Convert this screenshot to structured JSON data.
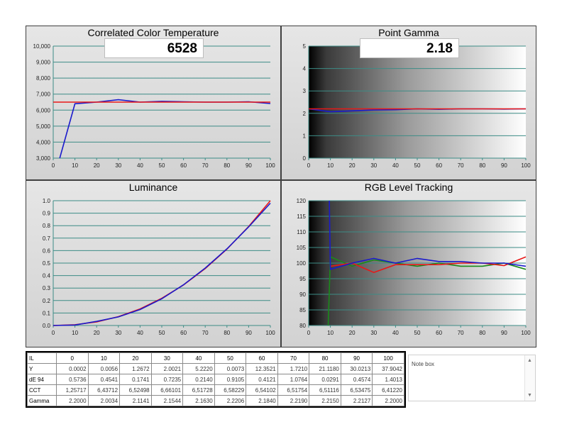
{
  "colors": {
    "blue": "#1a1acc",
    "red": "#e81818",
    "green": "#1a8a1a",
    "grid": "#3c8c86",
    "panel_bg": "#dcdcdc"
  },
  "chart_data": [
    {
      "id": "cct",
      "type": "line",
      "title": "Correlated Color Temperature",
      "readout": "6528",
      "x": [
        0,
        10,
        20,
        30,
        40,
        50,
        60,
        70,
        80,
        90,
        100
      ],
      "xlim": [
        0,
        100
      ],
      "ylim": [
        3000,
        10000
      ],
      "xticks": [
        "0",
        "10",
        "20",
        "30",
        "40",
        "50",
        "60",
        "70",
        "80",
        "90",
        "100"
      ],
      "yticks": [
        "3,000",
        "4,000",
        "5,000",
        "6,000",
        "7,000",
        "8,000",
        "9,000",
        "10,000"
      ],
      "series": [
        {
          "color": "blue",
          "x": [
            3,
            10,
            20,
            30,
            40,
            50,
            60,
            70,
            80,
            90,
            100
          ],
          "y": [
            3000,
            6400,
            6500,
            6650,
            6500,
            6550,
            6520,
            6500,
            6500,
            6520,
            6410
          ]
        },
        {
          "color": "red",
          "x": [
            0,
            100
          ],
          "y": [
            6500,
            6500
          ]
        }
      ],
      "background": "plain"
    },
    {
      "id": "gamma",
      "type": "line",
      "title": "Point Gamma",
      "readout": "2.18",
      "xlim": [
        0,
        100
      ],
      "ylim": [
        0,
        5
      ],
      "xticks": [
        "0",
        "10",
        "20",
        "30",
        "40",
        "50",
        "60",
        "70",
        "80",
        "90",
        "100"
      ],
      "yticks": [
        "0",
        "1",
        "2",
        "3",
        "4",
        "5"
      ],
      "series": [
        {
          "color": "blue",
          "x": [
            0,
            10,
            20,
            30,
            40,
            50,
            60,
            70,
            80,
            90,
            100
          ],
          "y": [
            2.2,
            2.07,
            2.11,
            2.15,
            2.16,
            2.2,
            2.18,
            2.2,
            2.2,
            2.19,
            2.2
          ]
        },
        {
          "color": "red",
          "x": [
            0,
            100
          ],
          "y": [
            2.2,
            2.2
          ]
        }
      ],
      "background": "grayscale"
    },
    {
      "id": "lum",
      "type": "line",
      "title": "Luminance",
      "readout": "",
      "xlim": [
        0,
        100
      ],
      "ylim": [
        0,
        1
      ],
      "xticks": [
        "0",
        "10",
        "20",
        "30",
        "40",
        "50",
        "60",
        "70",
        "80",
        "90",
        "100"
      ],
      "yticks": [
        "0.0",
        "0.1",
        "0.2",
        "0.3",
        "0.4",
        "0.5",
        "0.6",
        "0.7",
        "0.8",
        "0.9",
        "1.0"
      ],
      "series": [
        {
          "color": "red",
          "x": [
            0,
            10,
            20,
            30,
            40,
            50,
            60,
            70,
            80,
            90,
            100
          ],
          "y": [
            0,
            0.006,
            0.029,
            0.071,
            0.133,
            0.218,
            0.325,
            0.456,
            0.612,
            0.793,
            1.0
          ]
        },
        {
          "color": "blue",
          "x": [
            0,
            10,
            20,
            30,
            40,
            50,
            60,
            70,
            80,
            90,
            100
          ],
          "y": [
            0,
            0.004,
            0.033,
            0.069,
            0.128,
            0.214,
            0.326,
            0.46,
            0.614,
            0.79,
            0.98
          ]
        }
      ],
      "background": "plain"
    },
    {
      "id": "rgb",
      "type": "line",
      "title": "RGB Level Tracking",
      "readout": "",
      "xlim": [
        0,
        100
      ],
      "ylim": [
        80,
        120
      ],
      "xticks": [
        "0",
        "10",
        "20",
        "30",
        "40",
        "50",
        "60",
        "70",
        "80",
        "90",
        "100"
      ],
      "yticks": [
        "80",
        "85",
        "90",
        "95",
        "100",
        "105",
        "110",
        "115",
        "120"
      ],
      "series": [
        {
          "color": "green",
          "x": [
            9,
            10,
            20,
            30,
            40,
            50,
            60,
            70,
            80,
            90,
            100
          ],
          "y": [
            80,
            102,
            99,
            101,
            100,
            99,
            100,
            99,
            99,
            100,
            98
          ]
        },
        {
          "color": "red",
          "x": [
            10,
            20,
            30,
            40,
            50,
            60,
            70,
            80,
            90,
            100
          ],
          "y": [
            99,
            100,
            97,
            99.5,
            99.5,
            99.5,
            100,
            100,
            99.2,
            102
          ]
        },
        {
          "color": "blue",
          "x": [
            9.5,
            10,
            20,
            30,
            40,
            50,
            60,
            70,
            80,
            90,
            100
          ],
          "y": [
            120,
            98,
            100,
            101.5,
            100,
            101.5,
            100.5,
            100.5,
            100,
            100,
            99
          ]
        }
      ],
      "background": "grayscale"
    }
  ],
  "table": {
    "headers": [
      "IL",
      "0",
      "10",
      "20",
      "30",
      "40",
      "50",
      "60",
      "70",
      "80",
      "90",
      "100"
    ],
    "rows": [
      [
        "Y",
        "0.0002",
        "0.0056",
        "1.2672",
        "2.0021",
        "5.2220",
        "0.0073",
        "12.3521",
        "1.7210",
        "21.1180",
        "30.0213",
        "37.9042"
      ],
      [
        "dE 94",
        "0.5736",
        "0.4541",
        "0.1741",
        "0.7235",
        "0.2140",
        "0.9105",
        "0.4121",
        "1.0764",
        "0.0291",
        "0.4574",
        "1.4013"
      ],
      [
        "CCT",
        "1,25717",
        "6,43712",
        "6,52498",
        "6,66101",
        "6,51728",
        "6,58229",
        "6,54102",
        "6,51754",
        "6,51116",
        "6,53475",
        "6,41220"
      ],
      [
        "Gamma",
        "2.2000",
        "2.0034",
        "2.1141",
        "2.1544",
        "2.1630",
        "2.2206",
        "2.1840",
        "2.2190",
        "2.2150",
        "2.2127",
        "2.2000"
      ]
    ]
  },
  "note_box": {
    "label": "Note box",
    "scroll_up": "▲",
    "scroll_down": "▼"
  }
}
